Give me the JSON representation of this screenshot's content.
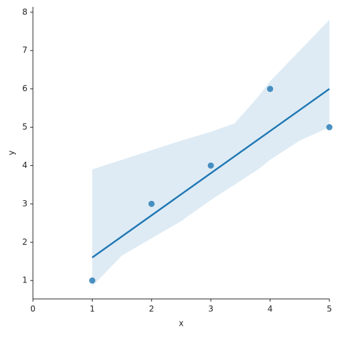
{
  "chart_data": {
    "type": "scatter",
    "x": [
      1,
      2,
      3,
      4,
      5
    ],
    "values": [
      1,
      3,
      4,
      6,
      5
    ],
    "color": "#1f77b4",
    "fit_x": [
      1,
      5
    ],
    "fit_values": [
      1.6,
      6.0
    ],
    "band_x": [
      1,
      1.5,
      2,
      2.5,
      3,
      3.4,
      3.8,
      4,
      4.5,
      5
    ],
    "band_lower": [
      0.85,
      1.65,
      2.1,
      2.55,
      3.1,
      3.5,
      3.9,
      4.15,
      4.65,
      5.0
    ],
    "band_upper": [
      3.9,
      4.15,
      4.4,
      4.65,
      4.88,
      5.1,
      5.8,
      6.2,
      7.0,
      7.8
    ],
    "xlabel": "x",
    "ylabel": "y",
    "xlim": [
      0,
      5
    ],
    "ylim": [
      0.52,
      8.14
    ],
    "xticks": [
      0,
      1,
      2,
      3,
      4,
      5
    ],
    "yticks": [
      1,
      2,
      3,
      4,
      5,
      6,
      7,
      8
    ]
  }
}
